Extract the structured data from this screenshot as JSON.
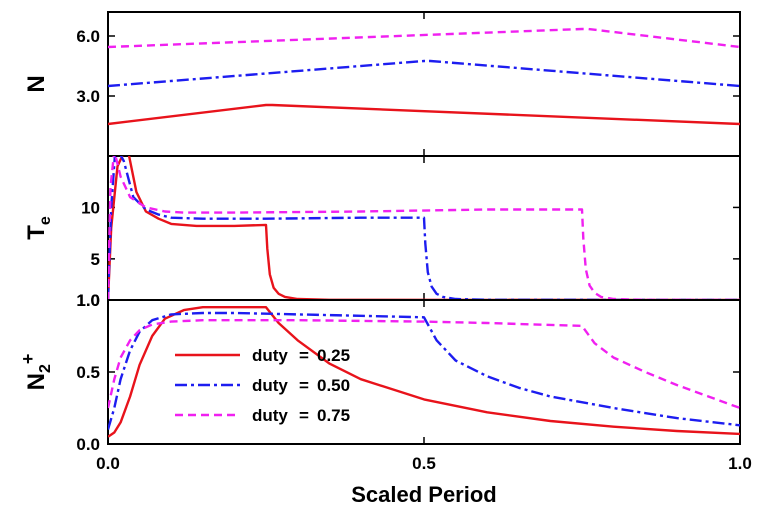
{
  "chart_data": {
    "type": "line",
    "xlabel": "Scaled Period",
    "xlim": [
      0,
      1
    ],
    "x_ticks": [
      "0.0",
      "0.5",
      "1.0"
    ],
    "series_styles": [
      {
        "name": "duty = 0.25",
        "color": "#e8131b",
        "dash": "solid"
      },
      {
        "name": "duty = 0.50",
        "color": "#1d1df0",
        "dash": "dash-dot"
      },
      {
        "name": "duty = 0.75",
        "color": "#f020f0",
        "dash": "dashed"
      }
    ],
    "legend": {
      "placement": "lower-left of bottom panel",
      "entries": [
        {
          "line": "solid",
          "prefix": "duty",
          "eq": "=",
          "value": "0.25"
        },
        {
          "line": "dash-dot",
          "prefix": "duty",
          "eq": "=",
          "value": "0.50"
        },
        {
          "line": "dashed",
          "prefix": "duty",
          "eq": "=",
          "value": "0.75"
        }
      ]
    },
    "panels": [
      {
        "ylabel": "N",
        "ylabel_sub": "",
        "ylabel_sup": "",
        "ylim": [
          0,
          7.2
        ],
        "y_ticks": [
          {
            "value": 3.0,
            "label": "3.0"
          },
          {
            "value": 6.0,
            "label": "6.0"
          }
        ],
        "series": [
          {
            "x": [
              0,
              0.25,
              0.26,
              1.0
            ],
            "y": [
              1.6,
              2.55,
              2.55,
              1.6
            ]
          },
          {
            "x": [
              0,
              0.5,
              0.51,
              1.0
            ],
            "y": [
              3.5,
              4.75,
              4.75,
              3.5
            ]
          },
          {
            "x": [
              0,
              0.75,
              0.76,
              1.0
            ],
            "y": [
              5.45,
              6.35,
              6.35,
              5.45
            ]
          }
        ]
      },
      {
        "ylabel": "T",
        "ylabel_sub": "e",
        "ylabel_sup": "",
        "ylim": [
          1,
          15
        ],
        "y_ticks": [
          {
            "value": 1.0,
            "label": "1.0"
          },
          {
            "value": 5,
            "label": "5"
          },
          {
            "value": 10,
            "label": "10"
          }
        ],
        "series": [
          {
            "x": [
              0,
              0.005,
              0.015,
              0.03,
              0.045,
              0.06,
              0.08,
              0.1,
              0.14,
              0.2,
              0.25,
              0.252,
              0.256,
              0.262,
              0.27,
              0.28,
              0.3,
              0.35,
              1.0
            ],
            "y": [
              1.0,
              8.0,
              14.0,
              16.0,
              11.5,
              9.6,
              8.9,
              8.4,
              8.2,
              8.2,
              8.3,
              6.0,
              3.5,
              2.2,
              1.6,
              1.3,
              1.1,
              1.02,
              1.0
            ]
          },
          {
            "x": [
              0,
              0.005,
              0.012,
              0.025,
              0.04,
              0.06,
              0.08,
              0.1,
              0.15,
              0.25,
              0.4,
              0.5,
              0.502,
              0.506,
              0.512,
              0.52,
              0.53,
              0.55,
              0.6,
              1.0
            ],
            "y": [
              1.0,
              10.0,
              16.0,
              14.5,
              11.0,
              9.8,
              9.3,
              9.0,
              8.9,
              8.9,
              9.0,
              9.0,
              6.5,
              3.7,
              2.3,
              1.6,
              1.3,
              1.1,
              1.02,
              1.0
            ]
          },
          {
            "x": [
              0,
              0.004,
              0.01,
              0.02,
              0.035,
              0.06,
              0.09,
              0.12,
              0.2,
              0.4,
              0.6,
              0.75,
              0.752,
              0.756,
              0.762,
              0.77,
              0.78,
              0.8,
              0.85,
              1.0
            ],
            "y": [
              1.0,
              12.0,
              15.5,
              13.0,
              11.0,
              10.0,
              9.6,
              9.5,
              9.5,
              9.6,
              9.8,
              9.8,
              7.0,
              4.0,
              2.4,
              1.7,
              1.3,
              1.1,
              1.02,
              1.0
            ]
          }
        ]
      },
      {
        "ylabel": "N",
        "ylabel_sub": "2",
        "ylabel_sup": "+",
        "ylim": [
          0,
          1.0
        ],
        "y_ticks": [
          {
            "value": 0.0,
            "label": "0.0"
          },
          {
            "value": 0.5,
            "label": "0.5"
          },
          {
            "value": 1.0,
            "label": "1.0"
          }
        ],
        "series": [
          {
            "x": [
              0,
              0.01,
              0.02,
              0.035,
              0.05,
              0.07,
              0.09,
              0.12,
              0.15,
              0.2,
              0.25,
              0.27,
              0.3,
              0.35,
              0.4,
              0.5,
              0.6,
              0.7,
              0.8,
              0.9,
              1.0
            ],
            "y": [
              0.05,
              0.08,
              0.15,
              0.33,
              0.55,
              0.75,
              0.87,
              0.93,
              0.95,
              0.95,
              0.95,
              0.84,
              0.72,
              0.56,
              0.45,
              0.31,
              0.22,
              0.16,
              0.12,
              0.09,
              0.07
            ]
          },
          {
            "x": [
              0,
              0.01,
              0.02,
              0.035,
              0.05,
              0.07,
              0.1,
              0.15,
              0.2,
              0.3,
              0.4,
              0.5,
              0.52,
              0.55,
              0.6,
              0.65,
              0.7,
              0.8,
              0.9,
              1.0
            ],
            "y": [
              0.1,
              0.25,
              0.45,
              0.65,
              0.78,
              0.86,
              0.9,
              0.91,
              0.91,
              0.9,
              0.89,
              0.88,
              0.72,
              0.58,
              0.47,
              0.39,
              0.33,
              0.25,
              0.18,
              0.13
            ]
          },
          {
            "x": [
              0,
              0.01,
              0.02,
              0.035,
              0.05,
              0.07,
              0.1,
              0.15,
              0.3,
              0.5,
              0.6,
              0.75,
              0.77,
              0.8,
              0.85,
              0.9,
              0.95,
              1.0
            ],
            "y": [
              0.25,
              0.45,
              0.6,
              0.72,
              0.79,
              0.83,
              0.85,
              0.86,
              0.86,
              0.85,
              0.84,
              0.82,
              0.7,
              0.6,
              0.5,
              0.41,
              0.33,
              0.25
            ]
          }
        ]
      }
    ]
  }
}
